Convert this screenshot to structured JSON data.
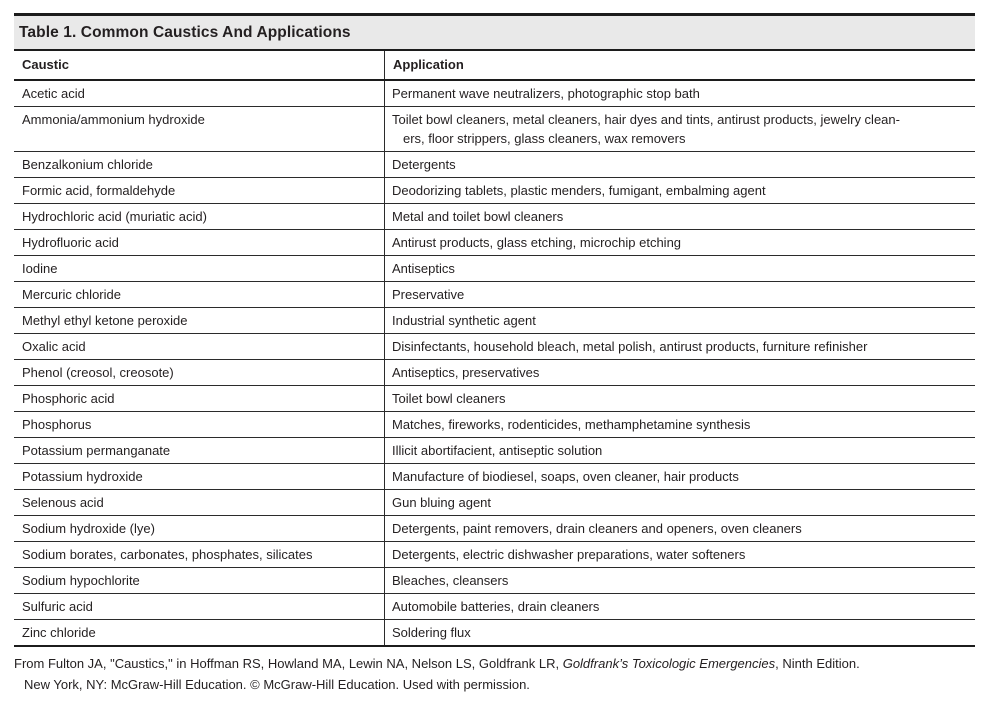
{
  "table": {
    "title": "Table 1. Common Caustics And Applications",
    "columns": {
      "caustic": "Caustic",
      "application": "Application"
    },
    "rows": [
      {
        "caustic": "Acetic acid",
        "application": "Permanent wave neutralizers, photographic stop bath"
      },
      {
        "caustic": "Ammonia/ammonium hydroxide",
        "application_lines": [
          "Toilet bowl cleaners, metal cleaners, hair dyes and tints, antirust products, jewelry clean-",
          "ers, floor strippers, glass cleaners, wax removers"
        ]
      },
      {
        "caustic": "Benzalkonium chloride",
        "application": "Detergents"
      },
      {
        "caustic": "Formic acid, formaldehyde",
        "application": "Deodorizing tablets, plastic menders, fumigant, embalming agent"
      },
      {
        "caustic": "Hydrochloric acid (muriatic acid)",
        "application": "Metal and toilet bowl cleaners"
      },
      {
        "caustic": "Hydrofluoric acid",
        "application": "Antirust products, glass etching, microchip etching"
      },
      {
        "caustic": "Iodine",
        "application": "Antiseptics"
      },
      {
        "caustic": "Mercuric chloride",
        "application": "Preservative"
      },
      {
        "caustic": "Methyl ethyl ketone peroxide",
        "application": "Industrial synthetic agent"
      },
      {
        "caustic": "Oxalic acid",
        "application": "Disinfectants, household bleach, metal polish, antirust products, furniture refinisher"
      },
      {
        "caustic": "Phenol (creosol, creosote)",
        "application": "Antiseptics, preservatives"
      },
      {
        "caustic": "Phosphoric acid",
        "application": "Toilet bowl cleaners"
      },
      {
        "caustic": "Phosphorus",
        "application": "Matches, fireworks, rodenticides, methamphetamine synthesis"
      },
      {
        "caustic": "Potassium permanganate",
        "application": "Illicit abortifacient, antiseptic solution"
      },
      {
        "caustic": "Potassium hydroxide",
        "application": "Manufacture of biodiesel, soaps, oven cleaner, hair products"
      },
      {
        "caustic": "Selenous acid",
        "application": "Gun bluing agent"
      },
      {
        "caustic": "Sodium hydroxide (lye)",
        "application": "Detergents, paint removers, drain cleaners and openers, oven cleaners"
      },
      {
        "caustic": "Sodium borates, carbonates, phosphates, silicates",
        "application": "Detergents, electric dishwasher preparations, water softeners"
      },
      {
        "caustic": "Sodium hypochlorite",
        "application": "Bleaches, cleansers"
      },
      {
        "caustic": "Sulfuric acid",
        "application": "Automobile batteries, drain cleaners"
      },
      {
        "caustic": "Zinc chloride",
        "application": "Soldering flux"
      }
    ]
  },
  "footnote": {
    "line1_pre": "From Fulton JA, \"Caustics,\" in Hoffman RS, Howland MA, Lewin NA, Nelson LS, Goldfrank LR, ",
    "line1_italic": "Goldfrank’s Toxicologic Emergencies",
    "line1_post": ", Ninth Edition.",
    "line2": "New York, NY: McGraw-Hill Education. © McGraw-Hill Education. Used with permission."
  },
  "colors": {
    "title_band_bg": "#e9e9e9",
    "border": "#1c1c1c",
    "text": "#231f20"
  }
}
